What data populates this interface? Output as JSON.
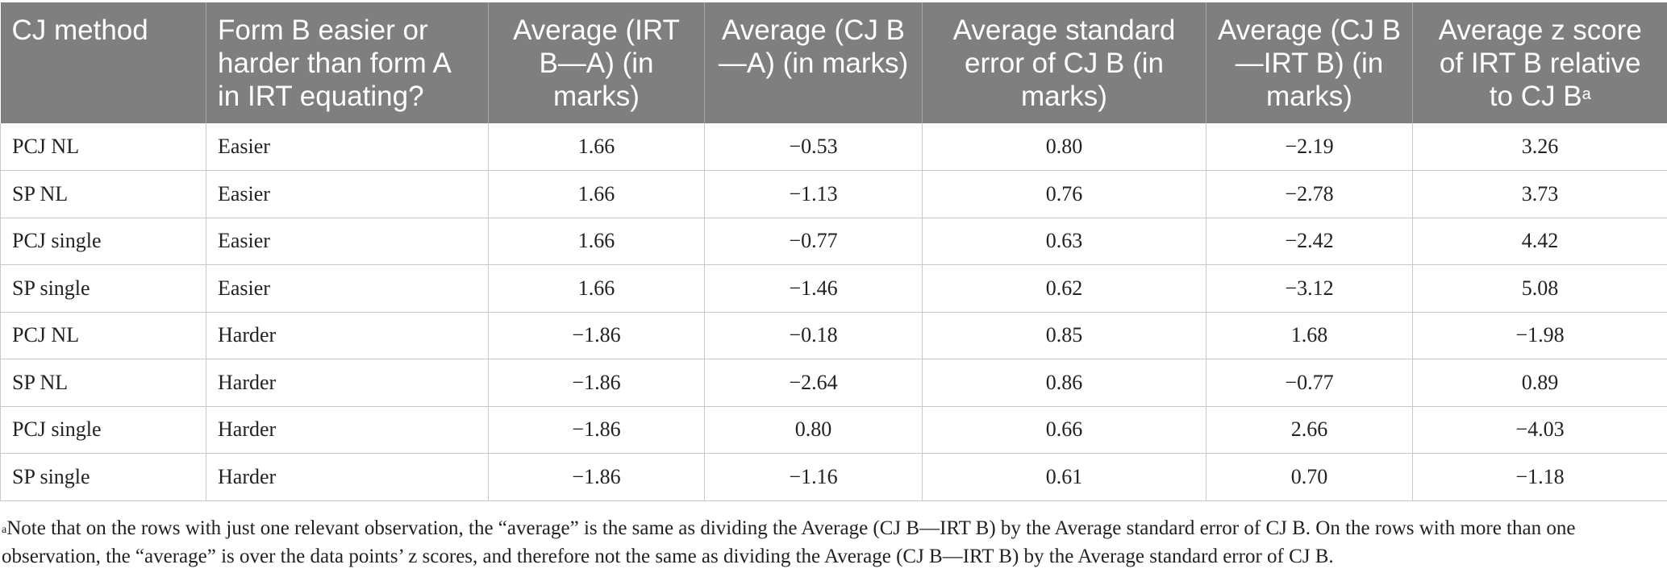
{
  "table": {
    "headers": [
      {
        "text": "CJ method",
        "sup": ""
      },
      {
        "text": "Form B easier or harder than form A in IRT equating?",
        "sup": ""
      },
      {
        "text": "Average (IRT B—A) (in marks)",
        "sup": ""
      },
      {
        "text": "Average (CJ B—A) (in marks)",
        "sup": ""
      },
      {
        "text": "Average standard error of CJ B (in marks)",
        "sup": ""
      },
      {
        "text": "Average (CJ B—IRT B) (in marks)",
        "sup": ""
      },
      {
        "text": "Average z score of IRT B relative to CJ B",
        "sup": "a"
      }
    ],
    "rows": [
      [
        "PCJ NL",
        "Easier",
        "1.66",
        "−0.53",
        "0.80",
        "−2.19",
        "3.26"
      ],
      [
        "SP NL",
        "Easier",
        "1.66",
        "−1.13",
        "0.76",
        "−2.78",
        "3.73"
      ],
      [
        "PCJ single",
        "Easier",
        "1.66",
        "−0.77",
        "0.63",
        "−2.42",
        "4.42"
      ],
      [
        "SP single",
        "Easier",
        "1.66",
        "−1.46",
        "0.62",
        "−3.12",
        "5.08"
      ],
      [
        "PCJ NL",
        "Harder",
        "−1.86",
        "−0.18",
        "0.85",
        "1.68",
        "−1.98"
      ],
      [
        "SP NL",
        "Harder",
        "−1.86",
        "−2.64",
        "0.86",
        "−0.77",
        "0.89"
      ],
      [
        "PCJ single",
        "Harder",
        "−1.86",
        "0.80",
        "0.66",
        "2.66",
        "−4.03"
      ],
      [
        "SP single",
        "Harder",
        "−1.86",
        "−1.16",
        "0.61",
        "0.70",
        "−1.18"
      ]
    ]
  },
  "footnote": {
    "marker": "a",
    "text": "Note that on the rows with just one relevant observation, the “average” is the same as dividing the Average (CJ B—IRT B) by the Average standard error of CJ B. On the rows with more than one observation, the “average” is over the data points’ z scores, and therefore not the same as dividing the Average (CJ B—IRT B) by the Average standard error of CJ B."
  }
}
